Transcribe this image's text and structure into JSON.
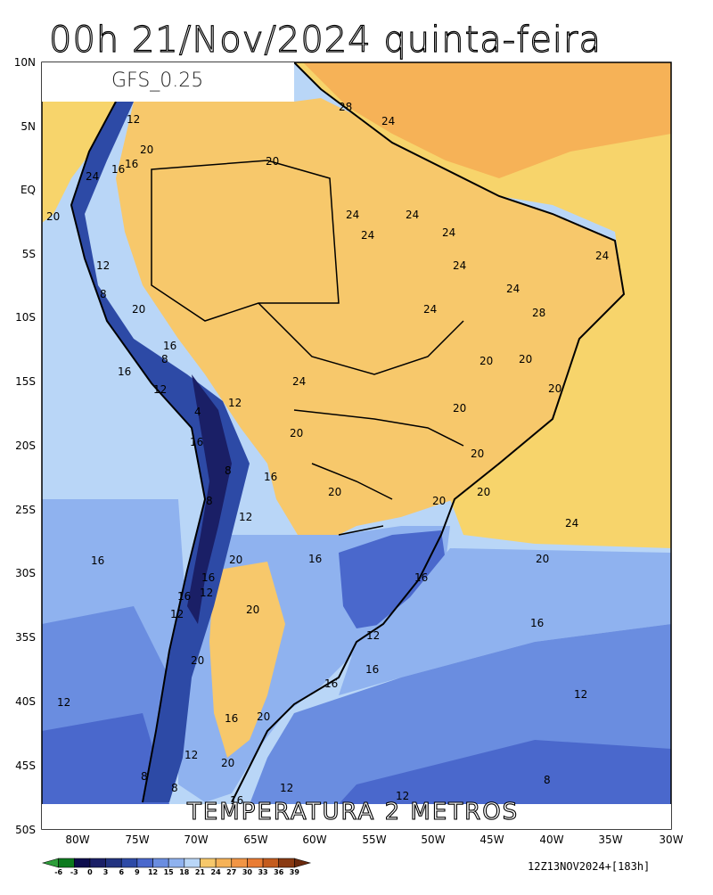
{
  "title": "00h 21/Nov/2024 quinta-feira",
  "model": "GFS_0.25",
  "variable": "TEMPERATURA 2 METROS",
  "run_info": "12Z13NOV2024+[183h]",
  "lat_labels": [
    "10N",
    "5N",
    "EQ",
    "5S",
    "10S",
    "15S",
    "20S",
    "25S",
    "30S",
    "35S",
    "40S",
    "45S",
    "50S"
  ],
  "lon_labels": [
    "80W",
    "75W",
    "70W",
    "65W",
    "60W",
    "55W",
    "50W",
    "45W",
    "40W",
    "35W",
    "30W"
  ],
  "colorbar": {
    "ticks": [
      "-6",
      "-3",
      "0",
      "3",
      "6",
      "9",
      "12",
      "15",
      "18",
      "21",
      "24",
      "27",
      "30",
      "33",
      "36",
      "39"
    ],
    "colors": [
      "#2e9e3a",
      "#0c7a1e",
      "#0d0d4d",
      "#1a1f66",
      "#223380",
      "#2d4aa6",
      "#4a68cc",
      "#6a8de0",
      "#8fb2ef",
      "#b9d6f7",
      "#f7c86b",
      "#f6b257",
      "#f19545",
      "#e97c33",
      "#c45c1e",
      "#8a3a12",
      "#6b2a0d"
    ]
  },
  "contour_labels": {
    "c28": "28",
    "c24": "24",
    "c20": "20",
    "c16": "16",
    "c12": "12",
    "c8": "8",
    "c4": "4"
  }
}
